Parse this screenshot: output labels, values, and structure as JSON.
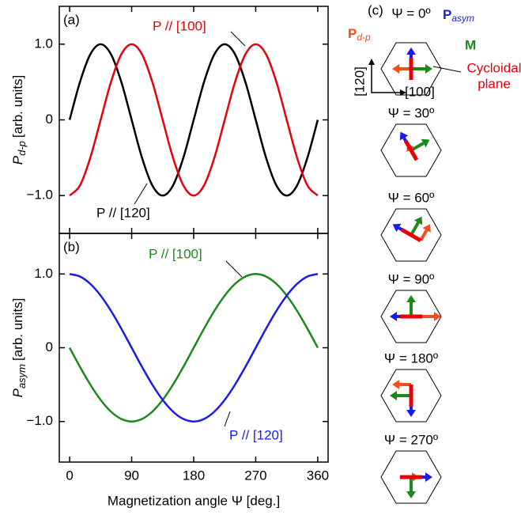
{
  "chart_data": [
    {
      "type": "line",
      "panel_label": "(a)",
      "ylabel": {
        "symbol": "P",
        "subscript": "d-p",
        "unit": "[arb. units]"
      },
      "xlim": [
        -15,
        375
      ],
      "ylim": [
        -1.5,
        1.5
      ],
      "xticks": [
        0,
        90,
        180,
        270,
        360
      ],
      "yticks": [
        {
          "value": 1,
          "label": "1.0"
        },
        0,
        {
          "value": -1,
          "label": "−1.0"
        }
      ],
      "x": [
        0,
        15,
        30,
        45,
        60,
        75,
        90,
        105,
        120,
        135,
        150,
        165,
        180,
        195,
        210,
        225,
        240,
        255,
        270,
        285,
        300,
        315,
        330,
        345,
        360
      ],
      "series": [
        {
          "name": "P // [120]",
          "color": "#000000",
          "values": [
            0,
            0.5,
            0.866,
            1,
            0.866,
            0.5,
            0,
            -0.5,
            -0.866,
            -1,
            -0.866,
            -0.5,
            0,
            0.5,
            0.866,
            1,
            0.866,
            0.5,
            0,
            -0.5,
            -0.866,
            -1,
            -0.866,
            -0.5,
            0
          ]
        },
        {
          "name": "P // [100]",
          "color": "#e8000b",
          "values": [
            -1,
            -0.866,
            -0.5,
            0,
            0.5,
            0.866,
            1,
            0.866,
            0.5,
            0,
            -0.5,
            -0.866,
            -1,
            -0.866,
            -0.5,
            0,
            0.5,
            0.866,
            1,
            0.866,
            0.5,
            0,
            -0.5,
            -0.866,
            -1
          ]
        }
      ]
    },
    {
      "type": "line",
      "panel_label": "(b)",
      "ylabel": {
        "symbol": "P",
        "subscript": "asym",
        "unit": "[arb. units]"
      },
      "xlabel": "Magnetization angle Ψ [deg.]",
      "xlim": [
        -15,
        375
      ],
      "ylim": [
        -1.55,
        1.55
      ],
      "xticks": [
        0,
        90,
        180,
        270,
        360
      ],
      "yticks": [
        {
          "value": 1,
          "label": "1.0"
        },
        0,
        {
          "value": -1,
          "label": "−1.0"
        }
      ],
      "x": [
        0,
        15,
        30,
        45,
        60,
        75,
        90,
        105,
        120,
        135,
        150,
        165,
        180,
        195,
        210,
        225,
        240,
        255,
        270,
        285,
        300,
        315,
        330,
        345,
        360
      ],
      "series": [
        {
          "name": "P // [100]",
          "color": "#1a8a1a",
          "values": [
            0,
            -0.259,
            -0.5,
            -0.707,
            -0.866,
            -0.966,
            -1,
            -0.966,
            -0.866,
            -0.707,
            -0.5,
            -0.259,
            0,
            0.259,
            0.5,
            0.707,
            0.866,
            0.966,
            1,
            0.966,
            0.866,
            0.707,
            0.5,
            0.259,
            0
          ]
        },
        {
          "name": "P // [120]",
          "color": "#1a1aee",
          "values": [
            1,
            0.966,
            0.866,
            0.707,
            0.5,
            0.259,
            0,
            -0.259,
            -0.5,
            -0.707,
            -0.866,
            -0.966,
            -1,
            -0.966,
            -0.866,
            -0.707,
            -0.5,
            -0.259,
            0,
            0.259,
            0.5,
            0.707,
            0.866,
            0.966,
            1
          ]
        }
      ]
    }
  ],
  "diagram": {
    "panel_label": "(c)",
    "p_asym": {
      "symbol": "P",
      "subscript": "asym"
    },
    "p_dp": {
      "symbol": "P",
      "subscript": "d-p"
    },
    "m": "M",
    "axis_120": "[120]",
    "axis_100": "[100]",
    "cycloidal_plane": [
      "Cycloidal",
      "plane"
    ],
    "states": [
      "Ψ = 0º",
      "Ψ = 30º",
      "Ψ = 60º",
      "Ψ = 90º",
      "Ψ = 180º",
      "Ψ = 270º"
    ]
  }
}
